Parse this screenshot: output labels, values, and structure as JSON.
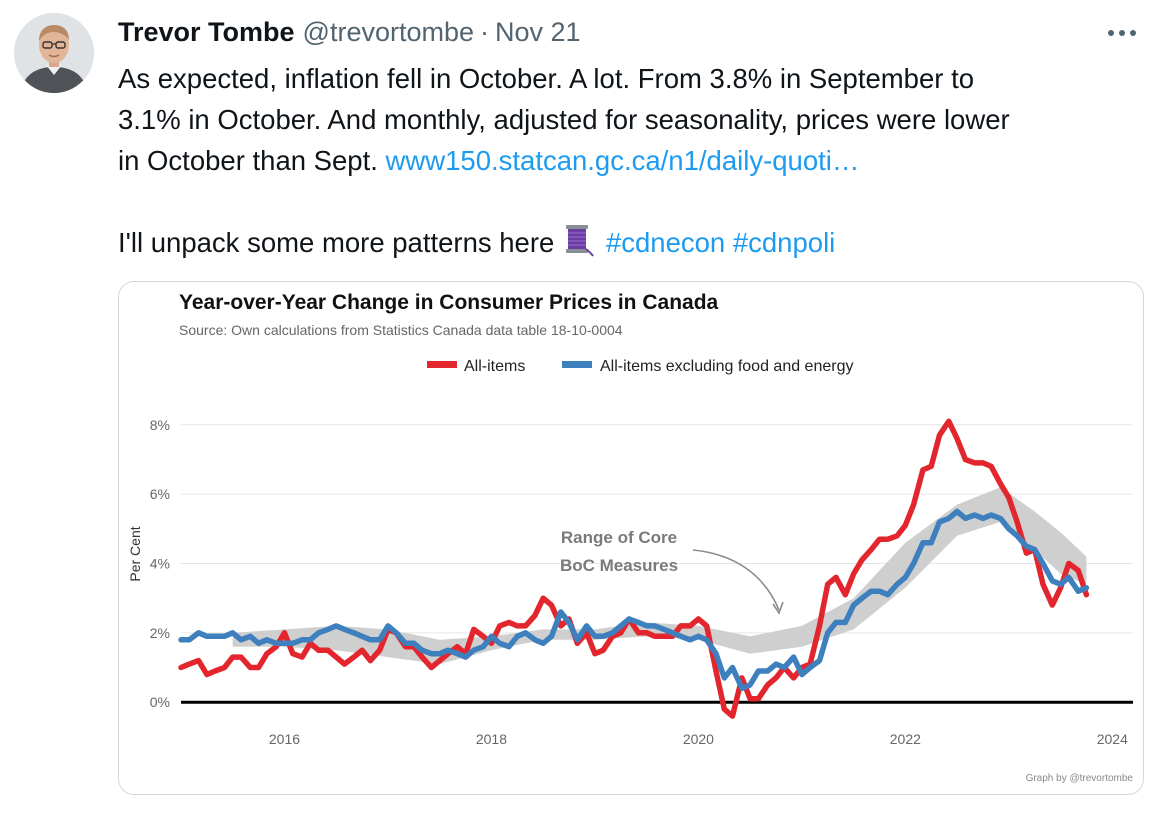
{
  "tweet": {
    "display_name": "Trevor Tombe",
    "handle": "@trevortombe",
    "separator": "·",
    "date": "Nov 21",
    "text_line1": "As expected, inflation fell in October. A lot. From 3.8% in September to",
    "text_line2": "3.1% in October. And monthly, adjusted for seasonality, prices were lower",
    "text_line3a": "in October than Sept. ",
    "link_text": "www150.statcan.gc.ca/n1/daily-quoti…",
    "text_line4": "I'll unpack some more patterns here",
    "thread_icon": "spool-of-thread-icon",
    "hashtag1": "#cdnecon",
    "hashtag2": "#cdnpoli",
    "more_icon": "more-icon"
  },
  "colors": {
    "all_items": "#e3262d",
    "core": "#3d80bd",
    "band": "#cfcfcf",
    "link": "#1d9bf0"
  },
  "chart_data": {
    "type": "line",
    "title": "Year-over-Year Change in Consumer Prices in Canada",
    "subtitle": "Source: Own calculations from Statistics Canada data table 18-10-0004",
    "ylabel": "Per Cent",
    "xlabel": "",
    "x_ticks": [
      2016,
      2018,
      2020,
      2022,
      2024
    ],
    "y_ticks": [
      0,
      2,
      4,
      6,
      8
    ],
    "y_tick_labels": [
      "0%",
      "2%",
      "4%",
      "6%",
      "8%"
    ],
    "xlim": [
      2015.0,
      2024.2
    ],
    "ylim": [
      -0.6,
      8.6
    ],
    "legend": {
      "position": "top",
      "entries": [
        "All-items",
        "All-items excluding food and energy"
      ]
    },
    "annotation": {
      "line1": "Range of Core",
      "line2": "BoC Measures",
      "x": 2019.0,
      "y": 4.2,
      "arrow_to_x": 2020.6,
      "arrow_to_y": 2.3
    },
    "credit": "Graph by @trevortombe",
    "series": [
      {
        "name": "All-items",
        "points": [
          [
            2015.0,
            1.0
          ],
          [
            2015.08,
            1.1
          ],
          [
            2015.17,
            1.2
          ],
          [
            2015.25,
            0.8
          ],
          [
            2015.33,
            0.9
          ],
          [
            2015.42,
            1.0
          ],
          [
            2015.5,
            1.3
          ],
          [
            2015.58,
            1.3
          ],
          [
            2015.67,
            1.0
          ],
          [
            2015.75,
            1.0
          ],
          [
            2015.83,
            1.4
          ],
          [
            2015.92,
            1.6
          ],
          [
            2016.0,
            2.0
          ],
          [
            2016.08,
            1.4
          ],
          [
            2016.17,
            1.3
          ],
          [
            2016.25,
            1.7
          ],
          [
            2016.33,
            1.5
          ],
          [
            2016.42,
            1.5
          ],
          [
            2016.5,
            1.3
          ],
          [
            2016.58,
            1.1
          ],
          [
            2016.67,
            1.3
          ],
          [
            2016.75,
            1.5
          ],
          [
            2016.83,
            1.2
          ],
          [
            2016.92,
            1.5
          ],
          [
            2017.0,
            2.1
          ],
          [
            2017.08,
            2.0
          ],
          [
            2017.17,
            1.6
          ],
          [
            2017.25,
            1.6
          ],
          [
            2017.33,
            1.3
          ],
          [
            2017.42,
            1.0
          ],
          [
            2017.5,
            1.2
          ],
          [
            2017.58,
            1.4
          ],
          [
            2017.67,
            1.6
          ],
          [
            2017.75,
            1.4
          ],
          [
            2017.83,
            2.1
          ],
          [
            2017.92,
            1.9
          ],
          [
            2018.0,
            1.7
          ],
          [
            2018.08,
            2.2
          ],
          [
            2018.17,
            2.3
          ],
          [
            2018.25,
            2.2
          ],
          [
            2018.33,
            2.2
          ],
          [
            2018.42,
            2.5
          ],
          [
            2018.5,
            3.0
          ],
          [
            2018.58,
            2.8
          ],
          [
            2018.67,
            2.2
          ],
          [
            2018.75,
            2.4
          ],
          [
            2018.83,
            1.7
          ],
          [
            2018.92,
            2.0
          ],
          [
            2019.0,
            1.4
          ],
          [
            2019.08,
            1.5
          ],
          [
            2019.17,
            1.9
          ],
          [
            2019.25,
            2.0
          ],
          [
            2019.33,
            2.4
          ],
          [
            2019.42,
            2.0
          ],
          [
            2019.5,
            2.0
          ],
          [
            2019.58,
            1.9
          ],
          [
            2019.67,
            1.9
          ],
          [
            2019.75,
            1.9
          ],
          [
            2019.83,
            2.2
          ],
          [
            2019.92,
            2.2
          ],
          [
            2020.0,
            2.4
          ],
          [
            2020.08,
            2.2
          ],
          [
            2020.17,
            0.9
          ],
          [
            2020.25,
            -0.2
          ],
          [
            2020.33,
            -0.4
          ],
          [
            2020.42,
            0.7
          ],
          [
            2020.5,
            0.1
          ],
          [
            2020.58,
            0.1
          ],
          [
            2020.67,
            0.5
          ],
          [
            2020.75,
            0.7
          ],
          [
            2020.83,
            1.0
          ],
          [
            2020.92,
            0.7
          ],
          [
            2021.0,
            1.0
          ],
          [
            2021.08,
            1.1
          ],
          [
            2021.17,
            2.2
          ],
          [
            2021.25,
            3.4
          ],
          [
            2021.33,
            3.6
          ],
          [
            2021.42,
            3.1
          ],
          [
            2021.5,
            3.7
          ],
          [
            2021.58,
            4.1
          ],
          [
            2021.67,
            4.4
          ],
          [
            2021.75,
            4.7
          ],
          [
            2021.83,
            4.7
          ],
          [
            2021.92,
            4.8
          ],
          [
            2022.0,
            5.1
          ],
          [
            2022.08,
            5.7
          ],
          [
            2022.17,
            6.7
          ],
          [
            2022.25,
            6.8
          ],
          [
            2022.33,
            7.7
          ],
          [
            2022.42,
            8.1
          ],
          [
            2022.5,
            7.6
          ],
          [
            2022.58,
            7.0
          ],
          [
            2022.67,
            6.9
          ],
          [
            2022.75,
            6.9
          ],
          [
            2022.83,
            6.8
          ],
          [
            2022.92,
            6.3
          ],
          [
            2023.0,
            5.9
          ],
          [
            2023.08,
            5.2
          ],
          [
            2023.17,
            4.3
          ],
          [
            2023.25,
            4.4
          ],
          [
            2023.33,
            3.4
          ],
          [
            2023.42,
            2.8
          ],
          [
            2023.5,
            3.3
          ],
          [
            2023.58,
            4.0
          ],
          [
            2023.67,
            3.8
          ],
          [
            2023.75,
            3.1
          ]
        ]
      },
      {
        "name": "All-items excluding food and energy",
        "points": [
          [
            2015.0,
            1.8
          ],
          [
            2015.08,
            1.8
          ],
          [
            2015.17,
            2.0
          ],
          [
            2015.25,
            1.9
          ],
          [
            2015.33,
            1.9
          ],
          [
            2015.42,
            1.9
          ],
          [
            2015.5,
            2.0
          ],
          [
            2015.58,
            1.8
          ],
          [
            2015.67,
            1.9
          ],
          [
            2015.75,
            1.7
          ],
          [
            2015.83,
            1.8
          ],
          [
            2015.92,
            1.7
          ],
          [
            2016.0,
            1.7
          ],
          [
            2016.08,
            1.7
          ],
          [
            2016.17,
            1.8
          ],
          [
            2016.25,
            1.8
          ],
          [
            2016.33,
            2.0
          ],
          [
            2016.42,
            2.1
          ],
          [
            2016.5,
            2.2
          ],
          [
            2016.58,
            2.1
          ],
          [
            2016.67,
            2.0
          ],
          [
            2016.75,
            1.9
          ],
          [
            2016.83,
            1.8
          ],
          [
            2016.92,
            1.8
          ],
          [
            2017.0,
            2.2
          ],
          [
            2017.08,
            2.0
          ],
          [
            2017.17,
            1.7
          ],
          [
            2017.25,
            1.7
          ],
          [
            2017.33,
            1.5
          ],
          [
            2017.42,
            1.4
          ],
          [
            2017.5,
            1.4
          ],
          [
            2017.58,
            1.5
          ],
          [
            2017.67,
            1.4
          ],
          [
            2017.75,
            1.3
          ],
          [
            2017.83,
            1.5
          ],
          [
            2017.92,
            1.6
          ],
          [
            2018.0,
            1.9
          ],
          [
            2018.08,
            1.7
          ],
          [
            2018.17,
            1.6
          ],
          [
            2018.25,
            1.9
          ],
          [
            2018.33,
            2.0
          ],
          [
            2018.42,
            1.8
          ],
          [
            2018.5,
            1.7
          ],
          [
            2018.58,
            1.9
          ],
          [
            2018.67,
            2.6
          ],
          [
            2018.75,
            2.3
          ],
          [
            2018.83,
            1.8
          ],
          [
            2018.92,
            2.2
          ],
          [
            2019.0,
            1.9
          ],
          [
            2019.08,
            1.9
          ],
          [
            2019.17,
            2.0
          ],
          [
            2019.25,
            2.2
          ],
          [
            2019.33,
            2.4
          ],
          [
            2019.42,
            2.3
          ],
          [
            2019.5,
            2.2
          ],
          [
            2019.58,
            2.2
          ],
          [
            2019.67,
            2.1
          ],
          [
            2019.75,
            2.0
          ],
          [
            2019.83,
            1.9
          ],
          [
            2019.92,
            1.8
          ],
          [
            2020.0,
            1.9
          ],
          [
            2020.08,
            1.8
          ],
          [
            2020.17,
            1.4
          ],
          [
            2020.25,
            0.7
          ],
          [
            2020.33,
            1.0
          ],
          [
            2020.42,
            0.4
          ],
          [
            2020.5,
            0.5
          ],
          [
            2020.58,
            0.9
          ],
          [
            2020.67,
            0.9
          ],
          [
            2020.75,
            1.1
          ],
          [
            2020.83,
            1.0
          ],
          [
            2020.92,
            1.3
          ],
          [
            2021.0,
            0.8
          ],
          [
            2021.08,
            1.0
          ],
          [
            2021.17,
            1.2
          ],
          [
            2021.25,
            2.0
          ],
          [
            2021.33,
            2.3
          ],
          [
            2021.42,
            2.3
          ],
          [
            2021.5,
            2.8
          ],
          [
            2021.58,
            3.0
          ],
          [
            2021.67,
            3.2
          ],
          [
            2021.75,
            3.2
          ],
          [
            2021.83,
            3.1
          ],
          [
            2021.92,
            3.4
          ],
          [
            2022.0,
            3.6
          ],
          [
            2022.08,
            4.0
          ],
          [
            2022.17,
            4.6
          ],
          [
            2022.25,
            4.6
          ],
          [
            2022.33,
            5.2
          ],
          [
            2022.42,
            5.3
          ],
          [
            2022.5,
            5.5
          ],
          [
            2022.58,
            5.3
          ],
          [
            2022.67,
            5.4
          ],
          [
            2022.75,
            5.3
          ],
          [
            2022.83,
            5.4
          ],
          [
            2022.92,
            5.3
          ],
          [
            2023.0,
            5.0
          ],
          [
            2023.08,
            4.8
          ],
          [
            2023.17,
            4.5
          ],
          [
            2023.25,
            4.4
          ],
          [
            2023.33,
            4.0
          ],
          [
            2023.42,
            3.5
          ],
          [
            2023.5,
            3.4
          ],
          [
            2023.58,
            3.6
          ],
          [
            2023.67,
            3.2
          ],
          [
            2023.75,
            3.3
          ]
        ]
      },
      {
        "name": "Range of Core BoC Measures",
        "type": "band",
        "points": [
          [
            2015.5,
            1.6,
            2.0
          ],
          [
            2016.0,
            1.6,
            2.1
          ],
          [
            2016.5,
            1.5,
            2.2
          ],
          [
            2017.0,
            1.3,
            2.1
          ],
          [
            2017.5,
            1.1,
            1.8
          ],
          [
            2018.0,
            1.5,
            1.9
          ],
          [
            2018.5,
            1.8,
            2.1
          ],
          [
            2019.0,
            1.8,
            2.1
          ],
          [
            2019.5,
            1.9,
            2.3
          ],
          [
            2020.0,
            1.8,
            2.2
          ],
          [
            2020.5,
            1.4,
            1.9
          ],
          [
            2021.0,
            1.6,
            2.2
          ],
          [
            2021.5,
            2.1,
            3.0
          ],
          [
            2022.0,
            3.3,
            4.6
          ],
          [
            2022.5,
            4.8,
            5.7
          ],
          [
            2022.92,
            5.2,
            6.2
          ],
          [
            2023.25,
            4.4,
            5.5
          ],
          [
            2023.5,
            3.7,
            4.9
          ],
          [
            2023.75,
            3.4,
            4.2
          ]
        ]
      }
    ]
  }
}
